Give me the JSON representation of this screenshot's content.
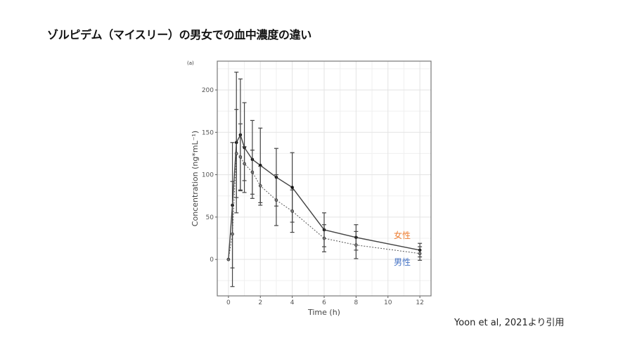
{
  "slide": {
    "title": "ゾルピデム（マイスリー）の男女での血中濃度の違い",
    "citation": "Yoon et al, 2021より引用"
  },
  "chart_data": {
    "type": "line",
    "panel_label": "(a)",
    "xlabel": "Time (h)",
    "ylabel": "Concentration (ng*mL⁻¹)",
    "xlim": [
      -0.7,
      12.7
    ],
    "ylim": [
      -43,
      234
    ],
    "xticks": [
      0,
      2,
      4,
      6,
      8,
      10,
      12
    ],
    "yticks": [
      0,
      50,
      100,
      150,
      200
    ],
    "grid": true,
    "x": [
      0,
      0.25,
      0.5,
      0.75,
      1,
      1.5,
      2,
      3,
      4,
      6,
      8,
      12
    ],
    "series": [
      {
        "name": "女性",
        "style": "solid",
        "label_color": "#ED7D31",
        "values": [
          0,
          64,
          138,
          147,
          132,
          118,
          111,
          97,
          85,
          35,
          26,
          11
        ],
        "error": [
          0,
          74,
          83,
          66,
          53,
          46,
          44,
          34,
          41,
          20,
          15,
          8
        ]
      },
      {
        "name": "男性",
        "style": "dotted",
        "label_color": "#4472C4",
        "values": [
          0,
          30,
          125,
          121,
          113,
          103,
          87,
          70,
          57,
          25,
          17,
          7
        ],
        "error": [
          0,
          62,
          52,
          39,
          20,
          26,
          23,
          30,
          25,
          16,
          16,
          8
        ]
      }
    ]
  }
}
